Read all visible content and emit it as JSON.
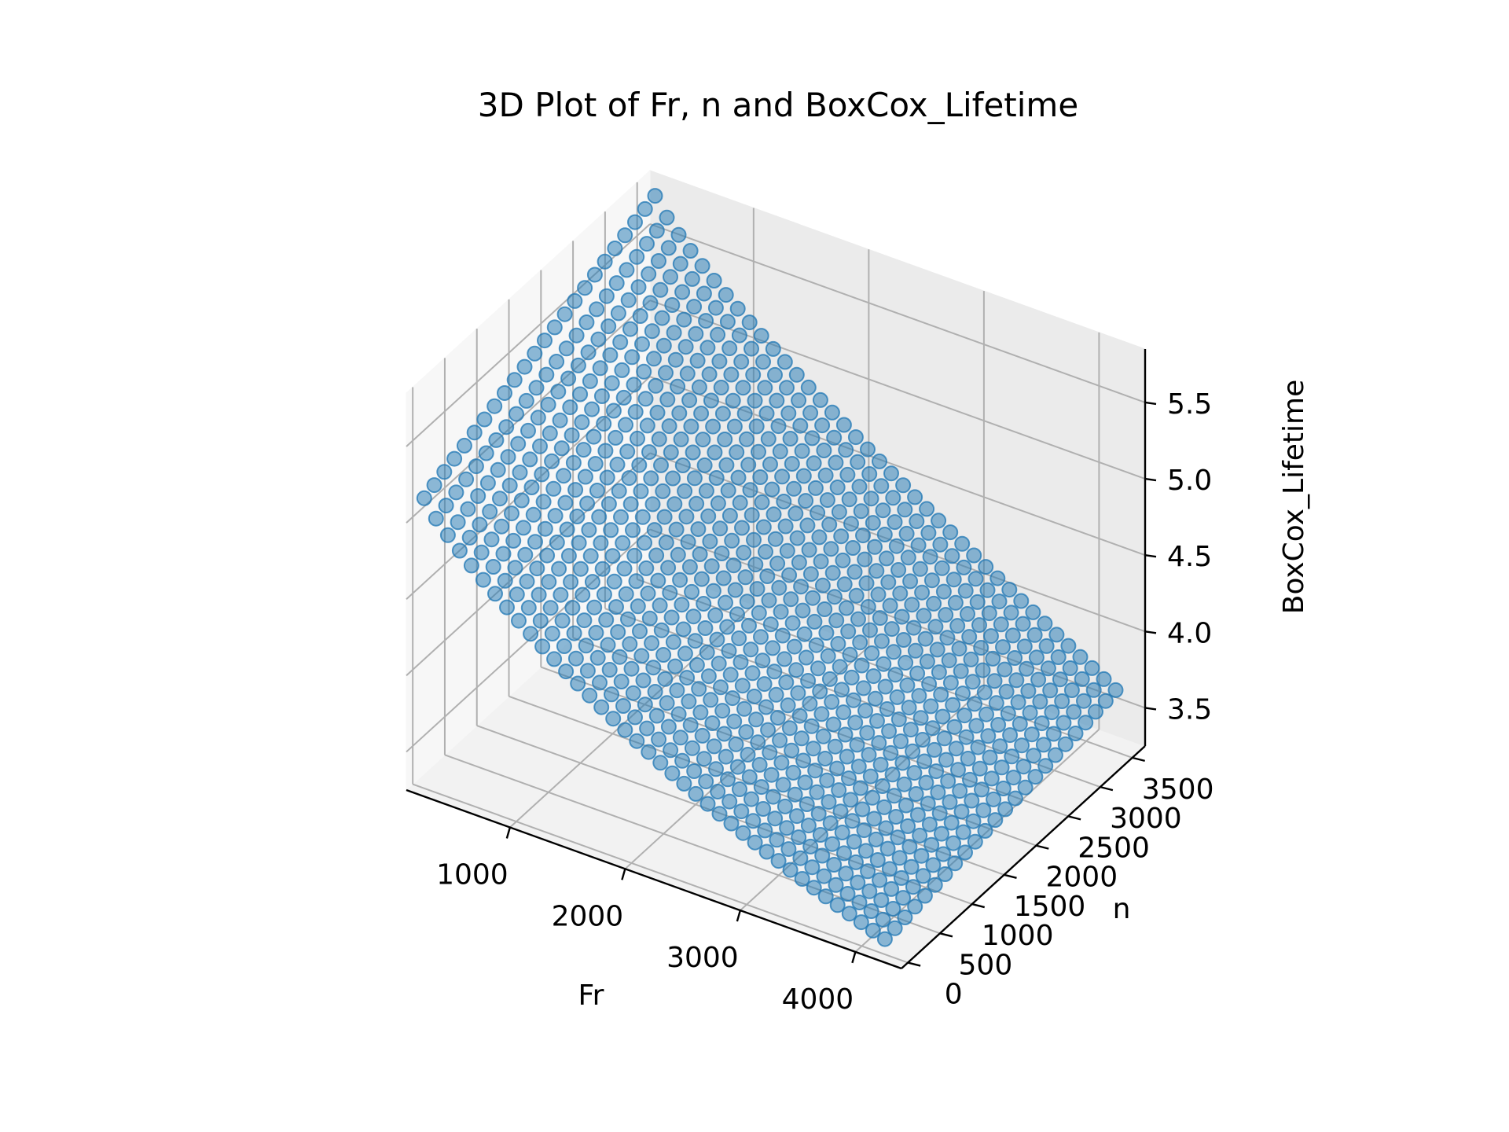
{
  "chart_data": {
    "type": "scatter3d",
    "title": "3D Plot of Fr, n and BoxCox_Lifetime",
    "xlabel": "Fr",
    "ylabel": "n",
    "zlabel": "BoxCox_Lifetime",
    "x_ticks": [
      1000,
      2000,
      3000,
      4000
    ],
    "x_tick_labels": [
      "1000",
      "2000",
      "3000",
      "4000"
    ],
    "y_ticks": [
      0,
      500,
      1000,
      1500,
      2000,
      2500,
      3000,
      3500
    ],
    "y_tick_labels": [
      "0",
      "500",
      "1000",
      "1500",
      "2000",
      "2500",
      "3000",
      "3500"
    ],
    "z_ticks": [
      3.5,
      4.0,
      4.5,
      5.0,
      5.5
    ],
    "z_tick_labels": [
      "3.5",
      "4.0",
      "4.5",
      "5.0",
      "5.5"
    ],
    "xlim": [
      100,
      4400
    ],
    "ylim": [
      -100,
      3700
    ],
    "zlim": [
      3.25,
      5.85
    ],
    "grid": true,
    "marker_color": "#1f77b4",
    "marker_alpha": 0.5,
    "x_range": [
      200,
      4200
    ],
    "y_range": [
      0,
      3600
    ],
    "x_count": 40,
    "y_count": 24,
    "z_corner_samples": [
      {
        "x": 200,
        "y": 0,
        "z": 5.15
      },
      {
        "x": 200,
        "y": 3600,
        "z": 5.75
      },
      {
        "x": 4200,
        "y": 0,
        "z": 3.35
      },
      {
        "x": 4200,
        "y": 3600,
        "z": 3.6
      }
    ]
  }
}
